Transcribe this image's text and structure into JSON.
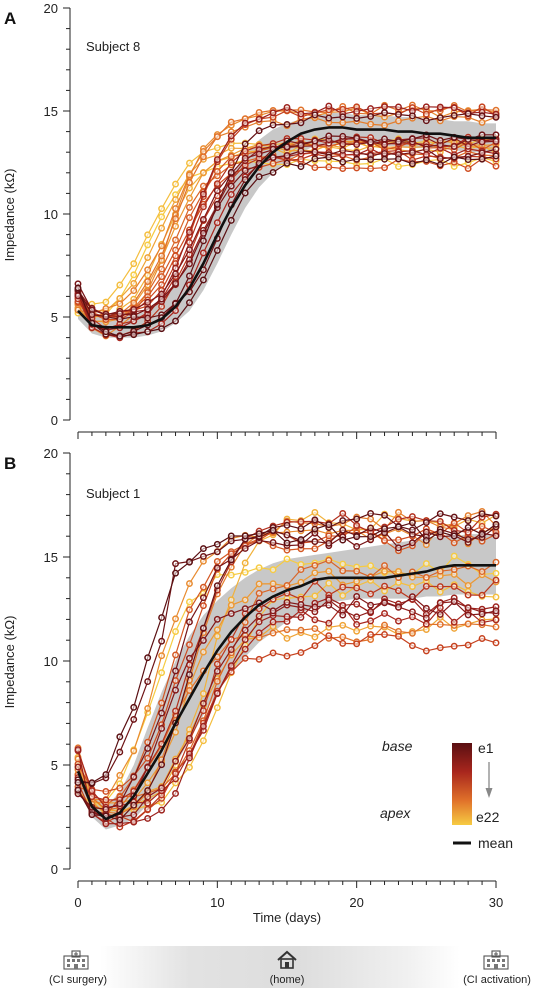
{
  "figure": {
    "panel_a_letter": "A",
    "panel_b_letter": "B",
    "panel_a_subject": "Subject 8",
    "panel_b_subject": "Subject 1",
    "xlabel": "Time (days)",
    "ylabel": "Impedance (kΩ)",
    "legend": {
      "base_label": "base",
      "apex_label": "apex",
      "top_electrode": "e1",
      "bottom_electrode": "e22",
      "mean_label": "mean",
      "color_base": "#5a0f12",
      "color_apex": "#f6cb42",
      "mean_color": "#111111",
      "band_color": "#c8c8c8"
    },
    "timeline": {
      "left": "(CI surgery)",
      "middle": "(home)",
      "right": "(CI activation)",
      "left_icon": "hospital-icon",
      "middle_icon": "home-icon",
      "right_icon": "hospital-icon"
    }
  },
  "chart_data": [
    {
      "type": "line",
      "panel": "A",
      "subject": "Subject 8",
      "xlabel": "",
      "ylabel": "Impedance (kΩ)",
      "xlim": [
        0,
        30
      ],
      "ylim": [
        0,
        20
      ],
      "xticks": [
        0,
        10,
        20,
        30
      ],
      "yticks": [
        0,
        5,
        10,
        15,
        20
      ],
      "x": [
        0,
        1,
        2,
        3,
        4,
        5,
        6,
        7,
        8,
        9,
        10,
        11,
        12,
        13,
        14,
        15,
        16,
        17,
        18,
        19,
        20,
        21,
        22,
        23,
        24,
        25,
        26,
        27,
        28,
        29,
        30
      ],
      "mean": [
        5.3,
        4.6,
        4.5,
        4.5,
        4.5,
        4.6,
        4.9,
        5.5,
        6.4,
        7.6,
        9.0,
        10.3,
        11.4,
        12.3,
        13.0,
        13.5,
        13.9,
        14.1,
        14.2,
        14.2,
        14.1,
        14.1,
        14.1,
        14.0,
        14.0,
        13.9,
        13.9,
        13.8,
        13.7,
        13.7,
        13.7
      ],
      "band_low": [
        4.9,
        4.2,
        4.0,
        4.0,
        4.0,
        4.1,
        4.3,
        4.7,
        5.3,
        6.3,
        7.6,
        9.0,
        10.3,
        11.3,
        12.0,
        12.6,
        13.0,
        13.3,
        13.4,
        13.4,
        13.4,
        13.4,
        13.3,
        13.3,
        13.2,
        13.2,
        13.2,
        13.1,
        13.0,
        13.0,
        13.0
      ],
      "band_high": [
        5.8,
        5.1,
        5.0,
        5.0,
        5.1,
        5.3,
        5.8,
        6.6,
        7.8,
        9.2,
        10.6,
        11.9,
        12.9,
        13.6,
        14.1,
        14.4,
        14.6,
        14.8,
        14.9,
        14.9,
        14.8,
        14.8,
        14.8,
        14.7,
        14.7,
        14.6,
        14.6,
        14.5,
        14.5,
        14.4,
        14.4
      ],
      "electrodes": {
        "count": 22,
        "first": "e1",
        "last": "e22",
        "onset_day_range": [
          5.2,
          10.8
        ],
        "start_range_kohm": [
          5.0,
          6.9
        ],
        "trough_range_kohm": [
          3.6,
          5.3
        ],
        "plateau_range_kohm": [
          12.3,
          15.8
        ],
        "early_rising_electrode": "e22"
      },
      "annotations": [
        "Subject 8"
      ]
    },
    {
      "type": "line",
      "panel": "B",
      "subject": "Subject 1",
      "xlabel": "Time (days)",
      "ylabel": "Impedance (kΩ)",
      "xlim": [
        0,
        30
      ],
      "ylim": [
        0,
        20
      ],
      "xticks": [
        0,
        10,
        20,
        30
      ],
      "yticks": [
        0,
        5,
        10,
        15,
        20
      ],
      "x": [
        0,
        1,
        2,
        3,
        4,
        5,
        6,
        7,
        8,
        9,
        10,
        11,
        12,
        13,
        14,
        15,
        16,
        17,
        18,
        19,
        20,
        21,
        22,
        23,
        24,
        25,
        26,
        27,
        28,
        29,
        30
      ],
      "mean": [
        4.7,
        3.0,
        2.4,
        2.7,
        3.5,
        4.6,
        5.7,
        7.0,
        8.2,
        9.4,
        10.5,
        11.4,
        12.1,
        12.7,
        13.1,
        13.4,
        13.6,
        13.9,
        14.0,
        14.0,
        14.0,
        14.0,
        14.0,
        14.1,
        14.2,
        14.3,
        14.5,
        14.6,
        14.6,
        14.6,
        14.6
      ],
      "band_low": [
        4.1,
        2.5,
        1.9,
        2.1,
        2.4,
        3.1,
        3.9,
        5.0,
        6.2,
        7.4,
        8.5,
        9.4,
        10.2,
        10.9,
        11.4,
        11.9,
        12.3,
        12.6,
        12.8,
        12.9,
        13.0,
        13.0,
        13.0,
        13.0,
        13.0,
        13.1,
        13.1,
        13.2,
        13.2,
        13.2,
        13.2
      ],
      "band_high": [
        5.3,
        3.6,
        3.0,
        3.7,
        5.0,
        6.8,
        8.5,
        10.0,
        11.2,
        12.2,
        12.9,
        13.5,
        14.0,
        14.4,
        14.7,
        14.9,
        15.0,
        15.1,
        15.2,
        15.3,
        15.4,
        15.5,
        15.6,
        15.7,
        15.8,
        15.9,
        16.0,
        16.0,
        16.1,
        16.1,
        16.1
      ],
      "electrodes": {
        "count": 22,
        "first": "e1",
        "last": "e22",
        "onset_day_range": [
          4.0,
          11.5
        ],
        "start_range_kohm": [
          3.2,
          6.4
        ],
        "trough_range_kohm": [
          1.6,
          3.6
        ],
        "plateau_range_kohm": [
          10.4,
          18.2
        ],
        "early_rising_electrode": "e1"
      },
      "annotations": [
        "Subject 1"
      ]
    }
  ]
}
